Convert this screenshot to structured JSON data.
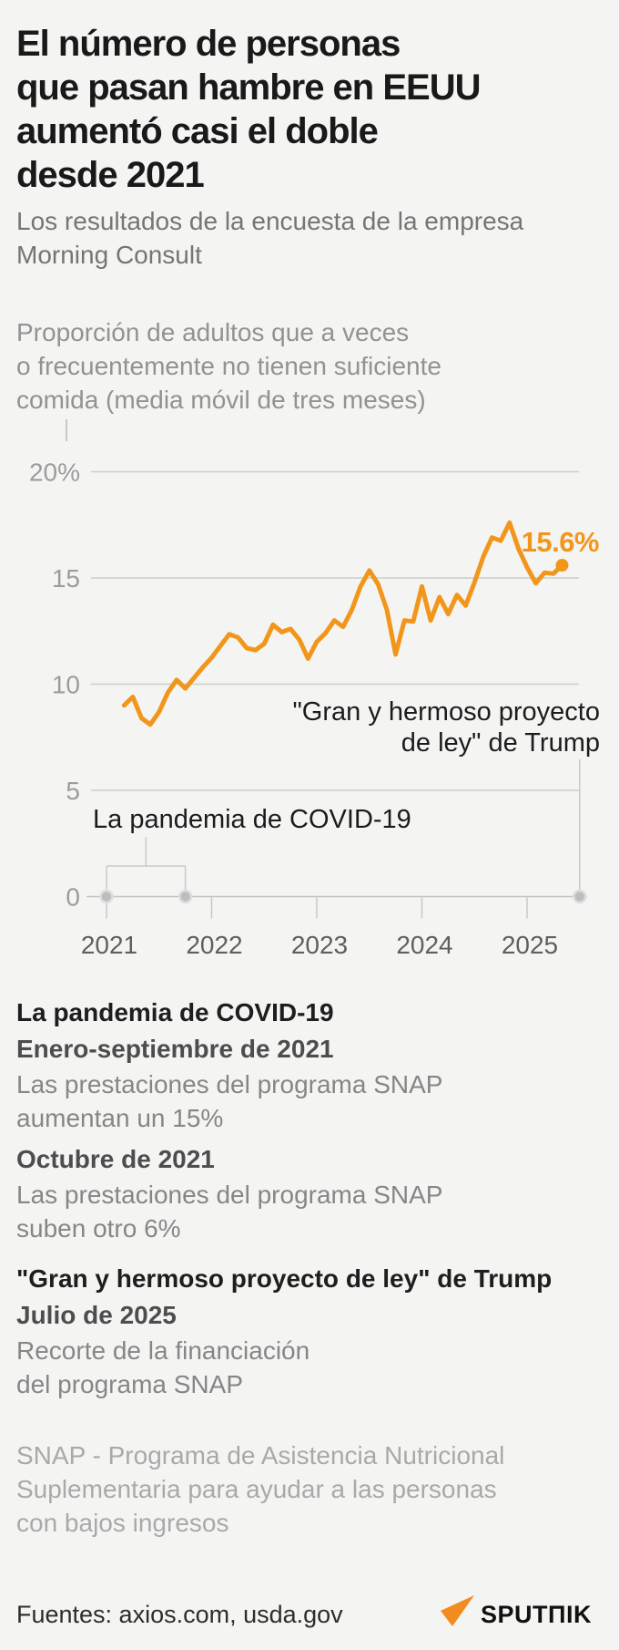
{
  "header": {
    "title_lines": [
      "El número de personas",
      "que pasan hambre en EEUU",
      "aumentó casi el doble",
      "desde 2021"
    ],
    "subtitle_lines": [
      "Los resultados de la encuesta de la empresa",
      "Morning Consult"
    ]
  },
  "chart_note_lines": [
    "Proporción de adultos que a veces",
    "o frecuentemente no tienen suficiente",
    "comida (media móvil de tres meses)"
  ],
  "chart_data": {
    "type": "line",
    "title": "Proporción de adultos que a veces o frecuentemente no tienen suficiente comida (media móvil de tres meses)",
    "unit": "%",
    "ylim": [
      0,
      20
    ],
    "yticks": [
      0,
      5,
      10,
      15,
      20
    ],
    "ytick_labels": [
      "0",
      "5",
      "10",
      "15",
      "20%"
    ],
    "xtick_years": [
      2021,
      2022,
      2023,
      2024,
      2025
    ],
    "grid": true,
    "series": [
      {
        "name": "Proporción de adultos sin suficiente comida",
        "start": "2021-03",
        "frequency": "monthly",
        "monthly_values": [
          9.0,
          9.4,
          8.4,
          8.1,
          8.7,
          9.6,
          10.2,
          9.8,
          10.3,
          10.8,
          11.25,
          11.8,
          12.35,
          12.2,
          11.7,
          11.6,
          11.9,
          12.8,
          12.45,
          12.6,
          12.1,
          11.2,
          12.0,
          12.4,
          13.0,
          12.7,
          13.5,
          14.6,
          15.35,
          14.7,
          13.5,
          11.4,
          13.0,
          12.95,
          14.6,
          13.0,
          14.1,
          13.3,
          14.2,
          13.7,
          14.8,
          16.0,
          16.9,
          16.75,
          17.6,
          16.4,
          15.5,
          14.75,
          15.25,
          15.2,
          15.6
        ]
      }
    ],
    "current_point": {
      "label": "15.6%",
      "value": 15.6,
      "date": "2025-05"
    },
    "annotations": [
      {
        "type": "bracket",
        "label": "La pandemia de COVID-19",
        "from": "2021-01",
        "to": "2021-10"
      },
      {
        "type": "marker",
        "label_lines": [
          "\"Gran y hermoso proyecto",
          "de ley\" de Trump"
        ],
        "at": "2025-07"
      }
    ]
  },
  "legend": {
    "sections": [
      {
        "heading": "La pandemia de COVID-19",
        "items": [
          {
            "subheading": "Enero-septiembre de 2021",
            "body_lines": [
              "Las prestaciones del programa SNAP",
              "aumentan un 15%"
            ]
          },
          {
            "subheading": "Octubre de 2021",
            "body_lines": [
              "Las prestaciones del programa SNAP",
              "suben otro 6%"
            ]
          }
        ]
      },
      {
        "heading": "\"Gran y hermoso proyecto de ley\" de Trump",
        "items": [
          {
            "subheading": "Julio de 2025",
            "body_lines": [
              "Recorte de la financiación",
              "del programa SNAP"
            ]
          }
        ]
      }
    ]
  },
  "footnote_lines": [
    "SNAP - Programa de Asistencia Nutricional",
    "Suplementaria para ayudar a las personas",
    "con bajos ingresos"
  ],
  "footer": {
    "sources": "Fuentes: axios.com, usda.gov",
    "logo_text": "SPUTΠIK"
  },
  "colors": {
    "accent_orange": "#F2961B",
    "logo_orange": "#F28C1E",
    "background": "#F4F4F3",
    "grid_line": "#CBCBCB",
    "axis_line": "#C3C3C3",
    "annotation_line": "#C9C9C9",
    "marker_gray_fill": "#BDBDBD",
    "marker_gray_ring": "#DEDEDE",
    "y_label_gray": "#9C9C9C",
    "x_label_gray": "#5F5F5F"
  }
}
